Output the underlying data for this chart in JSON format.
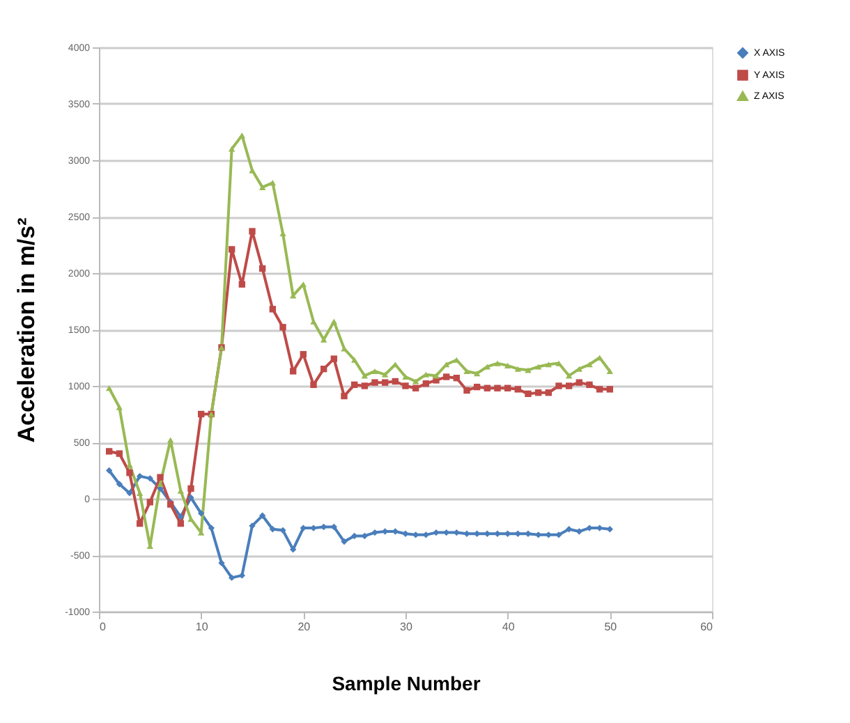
{
  "chart_data": {
    "type": "line",
    "xlabel": "Sample Number",
    "ylabel": "Acceleration in  m/s²",
    "x": [
      1,
      2,
      3,
      4,
      5,
      6,
      7,
      8,
      9,
      10,
      11,
      12,
      13,
      14,
      15,
      16,
      17,
      18,
      19,
      20,
      21,
      22,
      23,
      24,
      25,
      26,
      27,
      28,
      29,
      30,
      31,
      32,
      33,
      34,
      35,
      36,
      37,
      38,
      39,
      40,
      41,
      42,
      43,
      44,
      45,
      46,
      47,
      48,
      49,
      50
    ],
    "series": [
      {
        "name": "X AXIS",
        "color": "#4a7ebb",
        "marker": "diamond",
        "values": [
          250,
          130,
          50,
          200,
          180,
          90,
          -30,
          -160,
          10,
          -130,
          -260,
          -570,
          -700,
          -680,
          -240,
          -150,
          -270,
          -280,
          -450,
          -260,
          -260,
          -250,
          -250,
          -380,
          -330,
          -330,
          -300,
          -290,
          -290,
          -310,
          -320,
          -320,
          -300,
          -300,
          -300,
          -310,
          -310,
          -310,
          -310,
          -310,
          -310,
          -310,
          -320,
          -320,
          -320,
          -270,
          -290,
          -260,
          -260,
          -270
        ]
      },
      {
        "name": "Y AXIS",
        "color": "#be4b48",
        "marker": "square",
        "values": [
          420,
          400,
          230,
          -220,
          -30,
          190,
          -50,
          -220,
          90,
          750,
          750,
          1340,
          2210,
          1900,
          2370,
          2040,
          1680,
          1520,
          1130,
          1280,
          1010,
          1150,
          1240,
          910,
          1010,
          1000,
          1030,
          1030,
          1040,
          1000,
          980,
          1020,
          1050,
          1080,
          1070,
          960,
          990,
          980,
          980,
          980,
          970,
          930,
          940,
          940,
          1000,
          1000,
          1030,
          1010,
          970,
          970
        ]
      },
      {
        "name": "Z AXIS",
        "color": "#98b954",
        "marker": "triangle",
        "values": [
          980,
          810,
          300,
          50,
          -420,
          130,
          520,
          70,
          -180,
          -300,
          750,
          1340,
          3100,
          3220,
          2910,
          2760,
          2800,
          2350,
          1800,
          1900,
          1570,
          1410,
          1570,
          1330,
          1230,
          1090,
          1130,
          1100,
          1190,
          1080,
          1040,
          1100,
          1090,
          1190,
          1230,
          1130,
          1110,
          1170,
          1200,
          1180,
          1150,
          1140,
          1170,
          1190,
          1200,
          1090,
          1150,
          1190,
          1250,
          1130
        ]
      }
    ],
    "xlim": [
      0,
      60
    ],
    "xticks": [
      0,
      10,
      20,
      30,
      40,
      50,
      60
    ],
    "ylim": [
      -1000,
      4000
    ],
    "yticks": [
      -1000,
      -500,
      0,
      500,
      1000,
      1500,
      2000,
      2500,
      3000,
      3500,
      4000
    ],
    "grid": "y",
    "legend": "right",
    "line_style": "solid"
  }
}
